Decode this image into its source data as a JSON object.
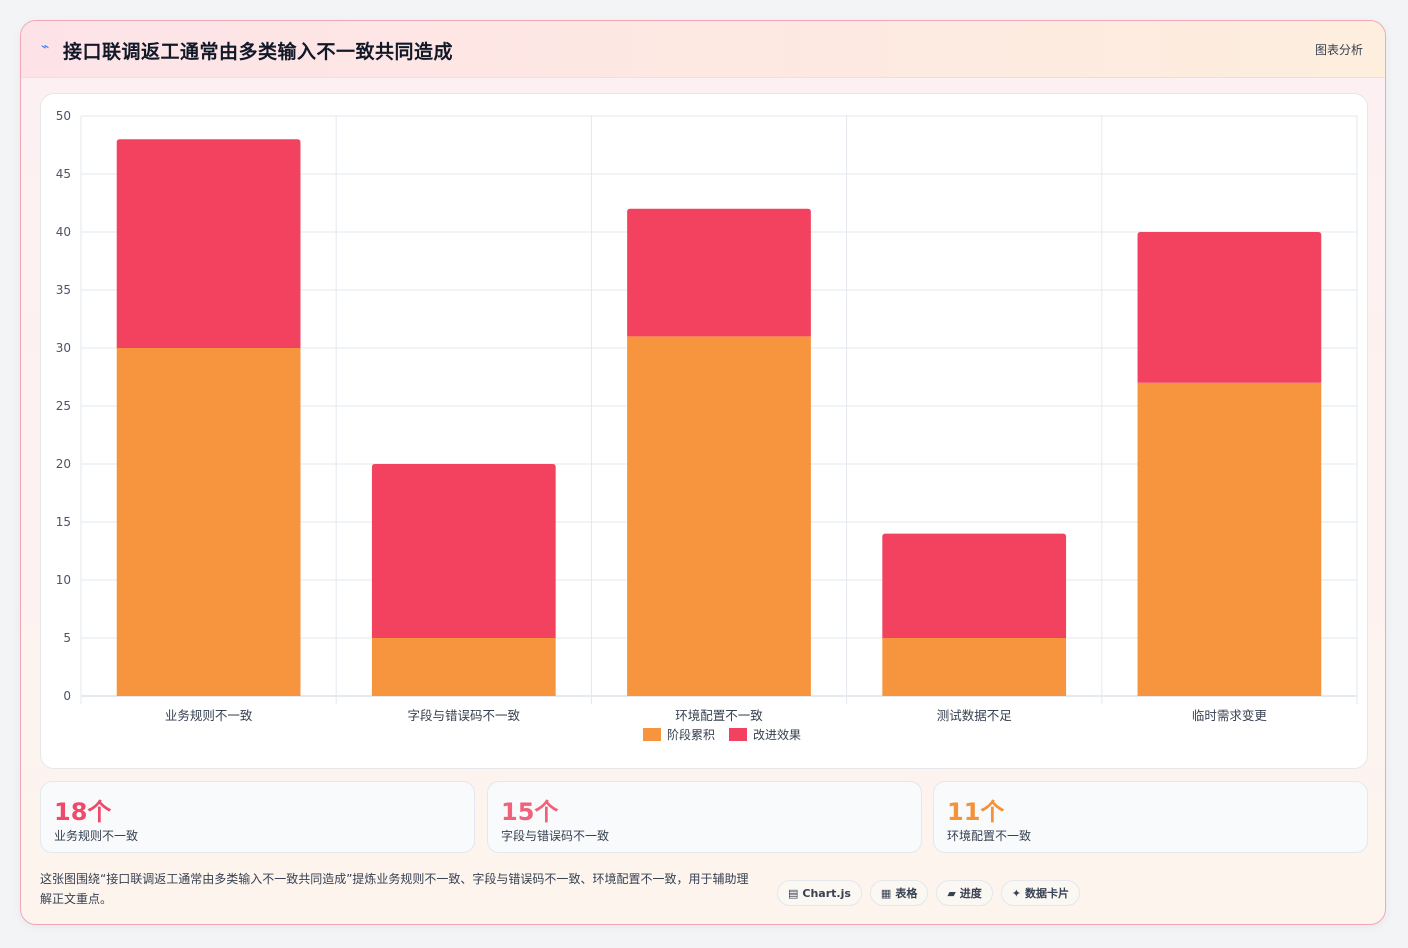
{
  "header": {
    "icon": "⌁",
    "title": "接口联调返工通常由多类输入不一致共同造成",
    "tag": "图表分析"
  },
  "colors": {
    "orange": "#f7943e",
    "red": "#f2425f",
    "stat_red": "#ef4a68",
    "stat_pink": "#f0627a",
    "stat_orange": "#f39237"
  },
  "chart_data": {
    "type": "bar",
    "stacked": true,
    "categories": [
      "业务规则不一致",
      "字段与错误码不一致",
      "环境配置不一致",
      "测试数据不足",
      "临时需求变更"
    ],
    "series": [
      {
        "name": "阶段累积",
        "color": "#f7943e",
        "values": [
          30,
          5,
          31,
          5,
          27
        ]
      },
      {
        "name": "改进效果",
        "color": "#f2425f",
        "values": [
          18,
          15,
          11,
          9,
          13
        ]
      }
    ],
    "ylim": [
      0,
      50
    ],
    "yticks": [
      0,
      5,
      10,
      15,
      20,
      25,
      30,
      35,
      40,
      45,
      50
    ],
    "grid": true,
    "legend": "bottom"
  },
  "stats": [
    {
      "value": "18个",
      "label": "业务规则不一致"
    },
    {
      "value": "15个",
      "label": "字段与错误码不一致"
    },
    {
      "value": "11个",
      "label": "环境配置不一致"
    }
  ],
  "footer": {
    "text": "这张图围绕“接口联调返工通常由多类输入不一致共同造成”提炼业务规则不一致、字段与错误码不一致、环境配置不一致，用于辅助理解正文重点。",
    "chips": [
      {
        "icon": "▤",
        "label": "Chart.js"
      },
      {
        "icon": "▦",
        "label": "表格"
      },
      {
        "icon": "▰",
        "label": "进度"
      },
      {
        "icon": "✦",
        "label": "数据卡片"
      }
    ]
  }
}
